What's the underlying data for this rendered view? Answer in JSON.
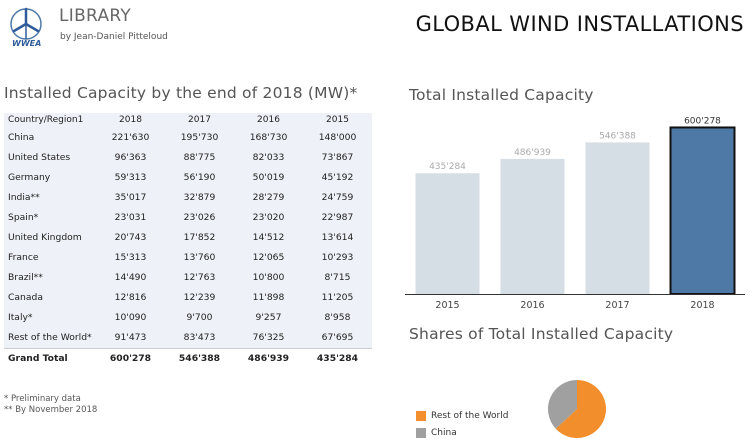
{
  "header": {
    "logo_text": "WWEA",
    "library_title": "LIBRARY",
    "byline": "by Jean-Daniel Pitteloud",
    "main_title": "GLOBAL WIND INSTALLATIONS"
  },
  "colors": {
    "bar_default": "#d6dee5",
    "bar_highlight": "#4e79a7",
    "pie_rest": "#f28e2b",
    "pie_china": "#a0a0a0",
    "table_bg": "#eef1f7"
  },
  "table": {
    "title": "Installed Capacity by the end of 2018 (MW)*",
    "columns": [
      "Country/Region1",
      "2018",
      "2017",
      "2016",
      "2015"
    ],
    "rows": [
      [
        "China",
        "221'630",
        "195'730",
        "168'730",
        "148'000"
      ],
      [
        "United States",
        "96'363",
        "88'775",
        "82'033",
        "73'867"
      ],
      [
        "Germany",
        "59'313",
        "56'190",
        "50'019",
        "45'192"
      ],
      [
        "India**",
        "35'017",
        "32'879",
        "28'279",
        "24'759"
      ],
      [
        "Spain*",
        "23'031",
        "23'026",
        "23'020",
        "22'987"
      ],
      [
        "United Kingdom",
        "20'743",
        "17'852",
        "14'512",
        "13'614"
      ],
      [
        "France",
        "15'313",
        "13'760",
        "12'065",
        "10'293"
      ],
      [
        "Brazil**",
        "14'490",
        "12'763",
        "10'800",
        "8'715"
      ],
      [
        "Canada",
        "12'816",
        "12'239",
        "11'898",
        "11'205"
      ],
      [
        "Italy*",
        "10'090",
        "9'700",
        "9'257",
        "8'958"
      ],
      [
        "Rest of the World*",
        "91'473",
        "83'473",
        "76'325",
        "67'695"
      ]
    ],
    "total": [
      "Grand Total",
      "600'278",
      "546'388",
      "486'939",
      "435'284"
    ]
  },
  "notes": [
    "* Preliminary data",
    "** By November 2018"
  ],
  "chart_data": [
    {
      "type": "bar",
      "title": "Total Installed Capacity",
      "categories": [
        "2015",
        "2016",
        "2017",
        "2018"
      ],
      "values": [
        435284,
        486939,
        546388,
        600278
      ],
      "labels": [
        "435'284",
        "486'939",
        "546'388",
        "600'278"
      ],
      "highlight": "2018",
      "ylim": [
        0,
        620000
      ],
      "grid": false
    },
    {
      "type": "pie",
      "title": "Shares of Total Installed Capacity",
      "legend_position": "left",
      "slices": [
        {
          "name": "Rest of the World",
          "value": 378648
        },
        {
          "name": "China",
          "value": 221630
        }
      ]
    }
  ]
}
